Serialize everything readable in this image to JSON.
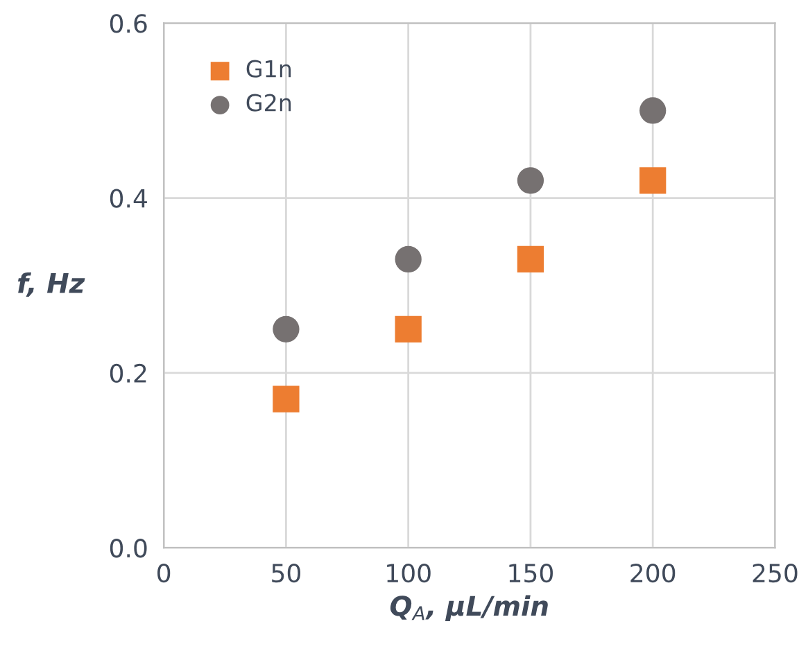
{
  "chart_data": {
    "type": "scatter",
    "xlabel": "Q$_{A}$, μL/min",
    "ylabel": "f, Hz",
    "x": [
      50,
      100,
      150,
      200
    ],
    "series": [
      {
        "name": "G1n",
        "color": "#ed7d31",
        "marker": "square",
        "values": [
          0.17,
          0.25,
          0.33,
          0.42
        ]
      },
      {
        "name": "G2n",
        "color": "#767171",
        "marker": "circle",
        "values": [
          0.25,
          0.33,
          0.42,
          0.5
        ]
      }
    ],
    "xlim": [
      0,
      250
    ],
    "xticks": [
      0,
      50,
      100,
      150,
      200,
      250
    ],
    "ylim": [
      0,
      0.6
    ],
    "yticks": [
      {
        "value": 0,
        "label": "0.0"
      },
      {
        "value": 0.2,
        "label": "0.2"
      },
      {
        "value": 0.4,
        "label": "0.4"
      },
      {
        "value": 0.6,
        "label": "0.6"
      }
    ],
    "grid": true,
    "legend": "top left"
  }
}
